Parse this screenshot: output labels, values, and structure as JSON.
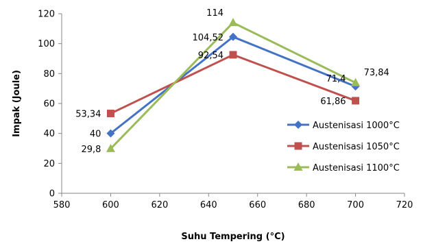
{
  "chart_data": {
    "type": "line",
    "xlabel": "Suhu Tempering (°C)",
    "ylabel": "Impak (Joule)",
    "xlim": [
      580,
      720
    ],
    "ylim": [
      0,
      120
    ],
    "xticks": [
      580,
      600,
      620,
      640,
      660,
      680,
      700,
      720
    ],
    "yticks": [
      0,
      20,
      40,
      60,
      80,
      100,
      120
    ],
    "grid": false,
    "legend_position": "right",
    "x": [
      600,
      650,
      700
    ],
    "series": [
      {
        "name": "Austenisasi 1000°C",
        "values": [
          40,
          104.52,
          71.4
        ],
        "labels": [
          "40",
          "104,52",
          "71,4"
        ],
        "color": "#4472C4",
        "marker": "diamond"
      },
      {
        "name": "Austenisasi 1050°C",
        "values": [
          53.34,
          92.54,
          61.86
        ],
        "labels": [
          "53,34",
          "92,54",
          "61,86"
        ],
        "color": "#C0504D",
        "marker": "square"
      },
      {
        "name": "Austenisasi 1100°C",
        "values": [
          29.8,
          114,
          73.84
        ],
        "labels": [
          "29,8",
          "114",
          "73,84"
        ],
        "color": "#9BBB59",
        "marker": "triangle"
      }
    ]
  }
}
